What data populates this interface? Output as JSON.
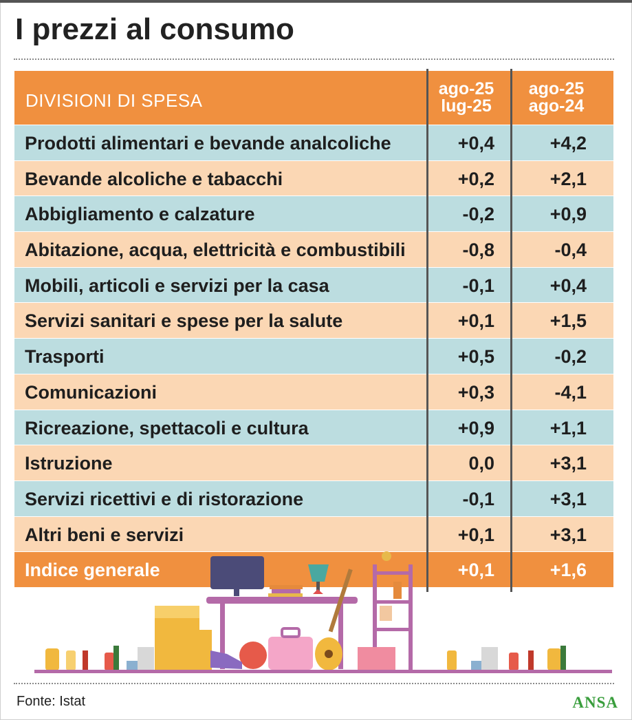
{
  "title": "I prezzi al consumo",
  "header": {
    "col0": "DIVISIONI DI SPESA",
    "col1_line1": "ago-25",
    "col1_line2": "lug-25",
    "col2_line1": "ago-25",
    "col2_line2": "ago-24"
  },
  "rows": [
    {
      "label": "Prodotti alimentari e bevande analcoliche",
      "v1": "+0,4",
      "v2": "+4,2"
    },
    {
      "label": "Bevande alcoliche e tabacchi",
      "v1": "+0,2",
      "v2": "+2,1"
    },
    {
      "label": "Abbigliamento e calzature",
      "v1": "-0,2",
      "v2": "+0,9"
    },
    {
      "label": "Abitazione, acqua, elettricità e combustibili",
      "v1": "-0,8",
      "v2": "-0,4"
    },
    {
      "label": "Mobili, articoli e servizi per la casa",
      "v1": "-0,1",
      "v2": "+0,4"
    },
    {
      "label": "Servizi sanitari e spese per la salute",
      "v1": "+0,1",
      "v2": "+1,5"
    },
    {
      "label": "Trasporti",
      "v1": "+0,5",
      "v2": "-0,2"
    },
    {
      "label": "Comunicazioni",
      "v1": "+0,3",
      "v2": "-4,1"
    },
    {
      "label": "Ricreazione, spettacoli e cultura",
      "v1": "+0,9",
      "v2": "+1,1"
    },
    {
      "label": "Istruzione",
      "v1": "0,0",
      "v2": "+3,1"
    },
    {
      "label": "Servizi ricettivi e di ristorazione",
      "v1": "-0,1",
      "v2": "+3,1"
    },
    {
      "label": "Altri beni e servizi",
      "v1": "+0,1",
      "v2": "+3,1"
    },
    {
      "label": "Indice generale",
      "v1": "+0,1",
      "v2": "+1,6"
    }
  ],
  "source": "Fonte: Istat",
  "brand": "ANSA",
  "colors": {
    "header": "#f0903f",
    "row_blue": "#bcdde0",
    "row_peach": "#fbd7b4",
    "brand": "#3a9e3d"
  }
}
